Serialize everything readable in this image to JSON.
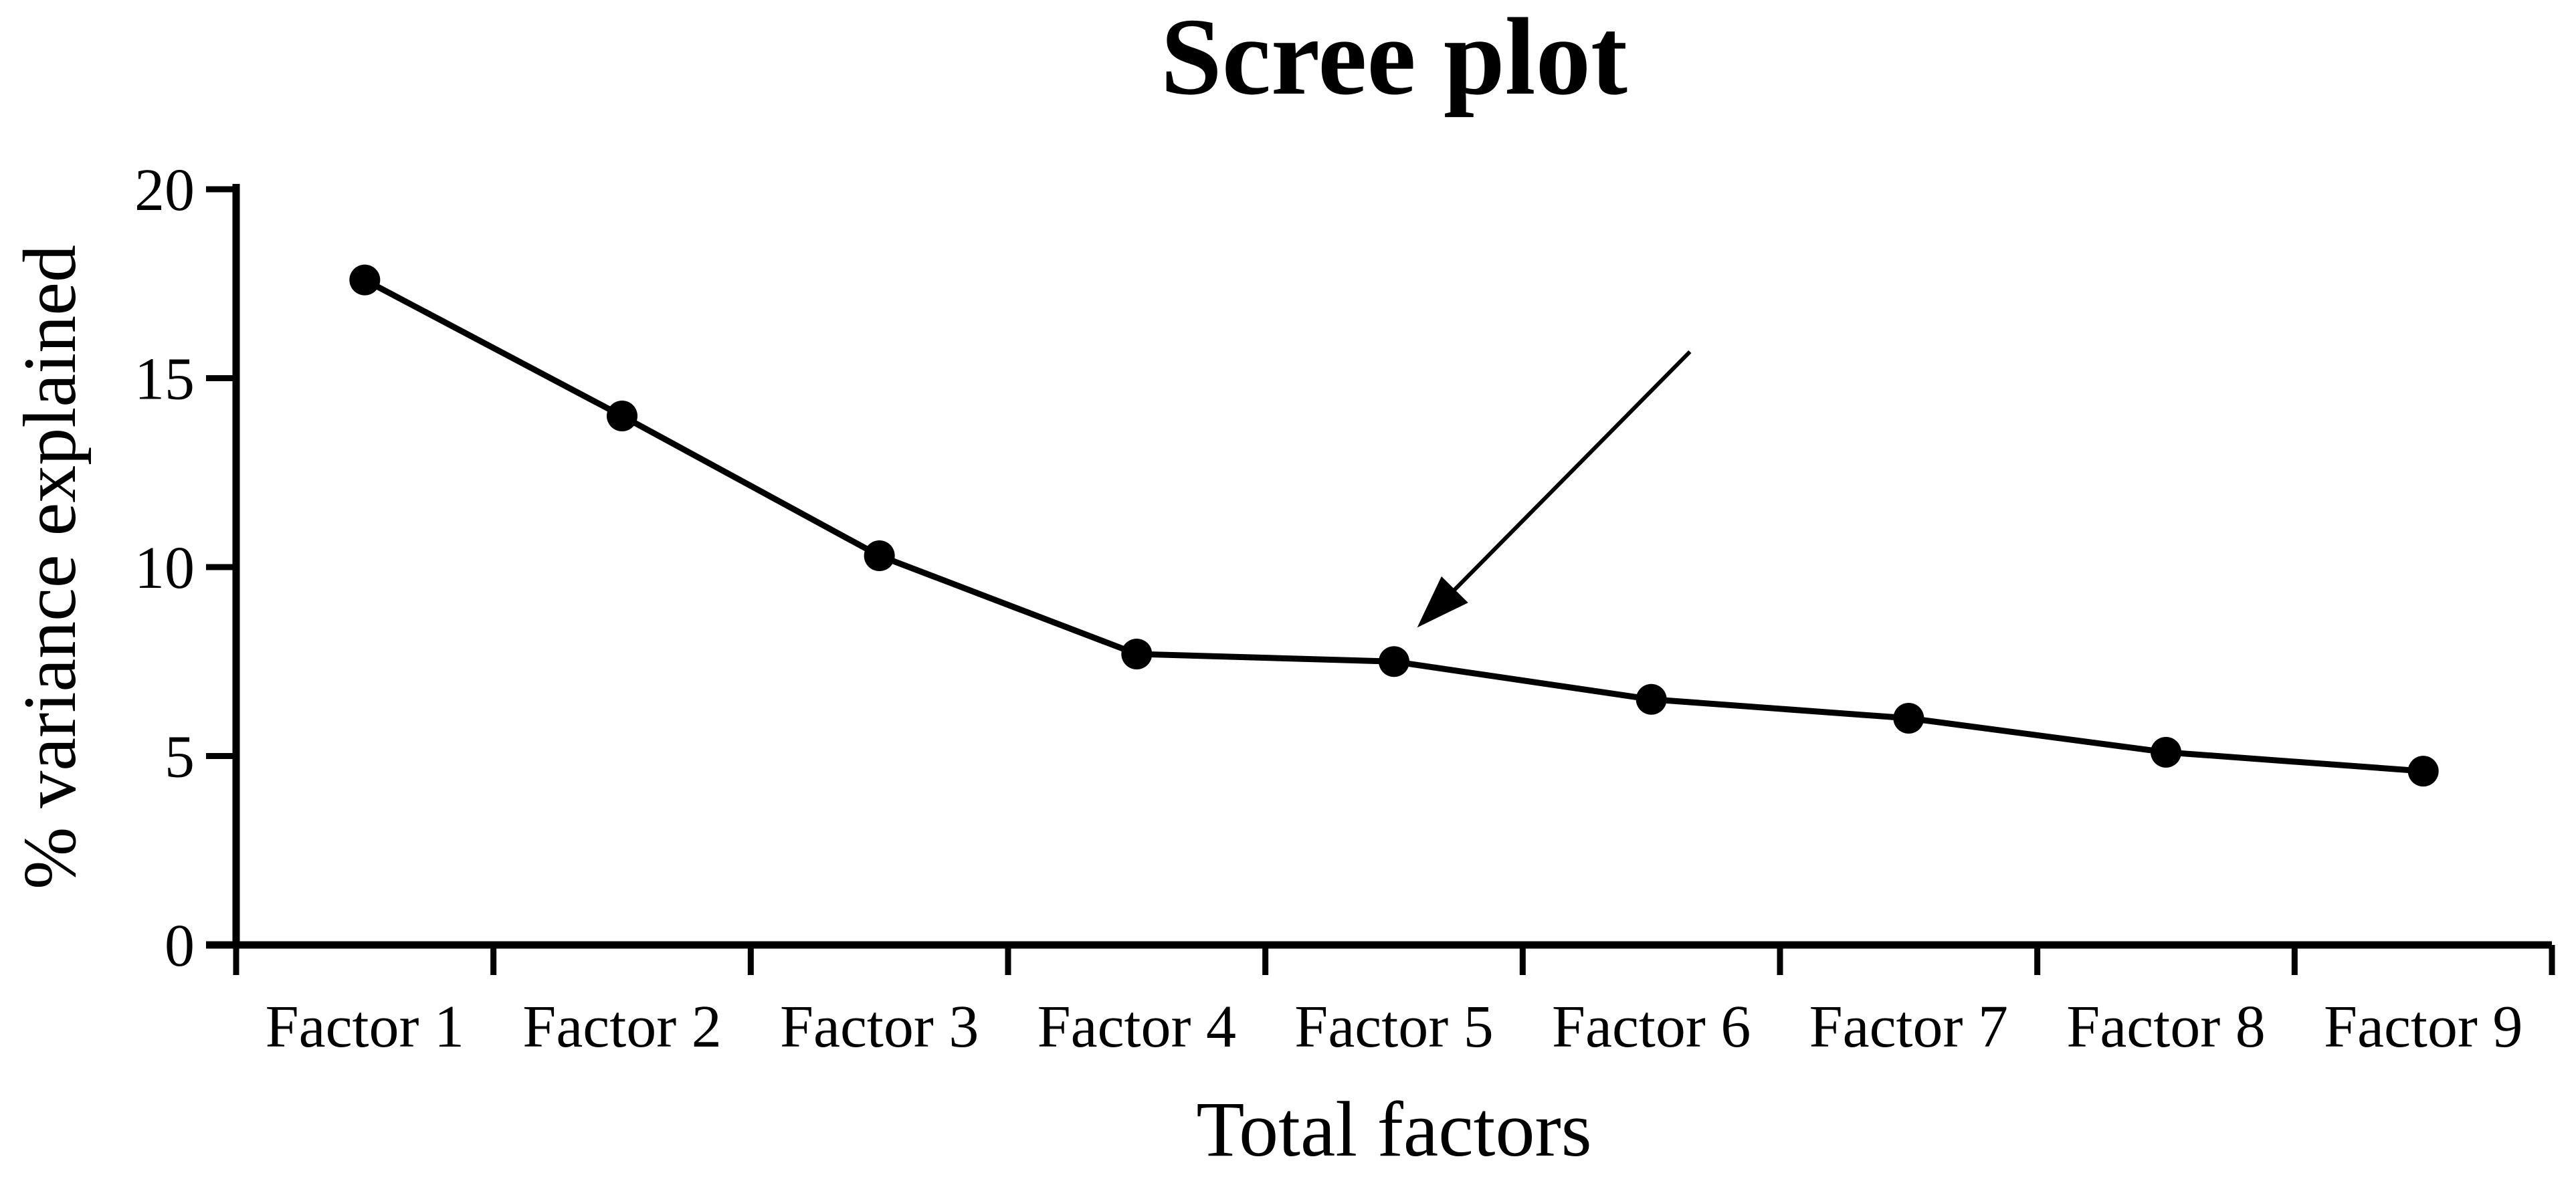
{
  "figure": {
    "background_color": "#ffffff",
    "ink_color": "#000000"
  },
  "chart_data": {
    "type": "line",
    "title": "Scree plot",
    "xlabel": "Total factors",
    "ylabel": "% variance explained",
    "categories": [
      "Factor 1",
      "Factor 2",
      "Factor 3",
      "Factor 4",
      "Factor 5",
      "Factor 6",
      "Factor 7",
      "Factor 8",
      "Factor 9"
    ],
    "values": [
      17.6,
      14.0,
      10.3,
      7.7,
      7.5,
      6.5,
      6.0,
      5.1,
      4.6
    ],
    "series_name": "% variance explained",
    "ylim": [
      0,
      20
    ],
    "yticks": [
      0,
      5,
      10,
      15,
      20
    ],
    "ytick_labels": [
      "0",
      "5",
      "10",
      "15",
      "20"
    ],
    "grid": false,
    "legend_position": "none",
    "marker_style": "filled-circle",
    "line_color": "#000000",
    "marker_color": "#000000",
    "annotation": {
      "shape": "arrow",
      "points_at_category": "Factor 5",
      "tail_data_xy": [
        6.15,
        15.7
      ],
      "tip_data_xy": [
        5.09,
        8.4
      ]
    }
  }
}
